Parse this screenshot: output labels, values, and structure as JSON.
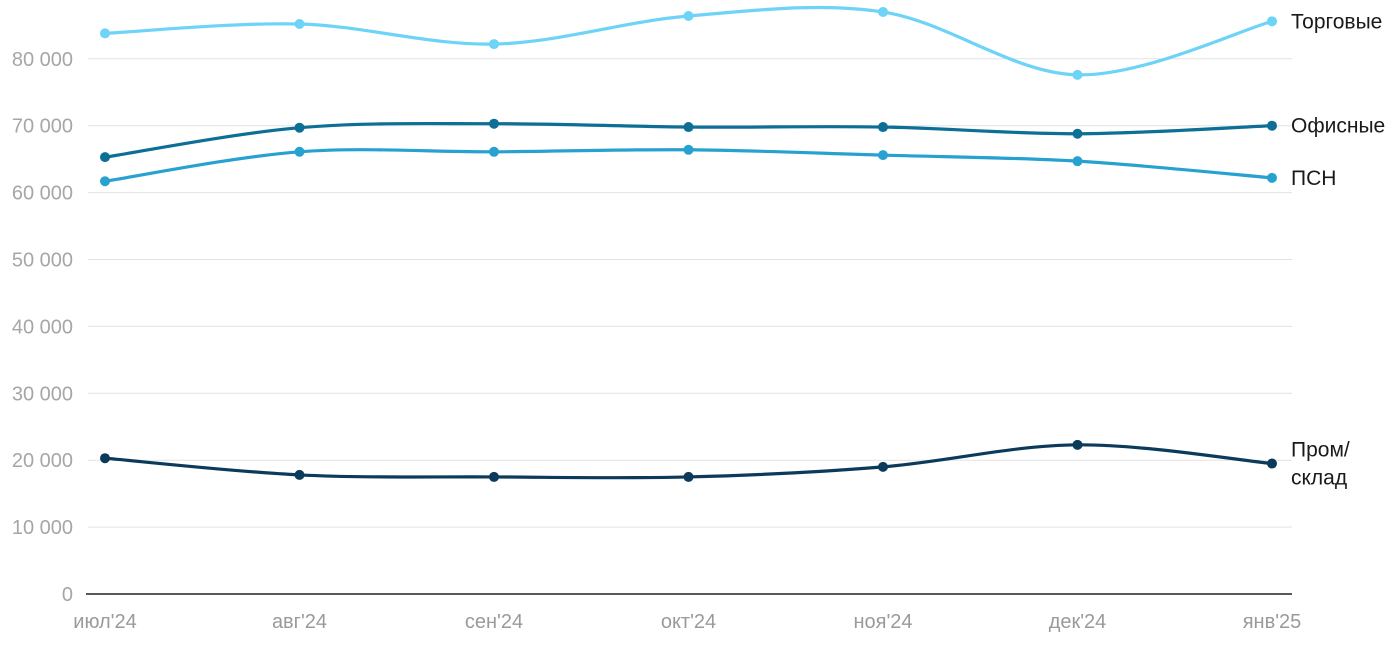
{
  "chart_data": {
    "type": "line",
    "title": "",
    "xlabel": "",
    "ylabel": "",
    "categories": [
      "июл'24",
      "авг'24",
      "сен'24",
      "окт'24",
      "ноя'24",
      "дек'24",
      "янв'25"
    ],
    "ylim": [
      0,
      90000
    ],
    "yticks": [
      0,
      10000,
      20000,
      30000,
      40000,
      50000,
      60000,
      70000,
      80000
    ],
    "ytick_labels": [
      "0",
      "10 000",
      "20 000",
      "30 000",
      "40 000",
      "50 000",
      "60 000",
      "70 000",
      "80 000"
    ],
    "grid": true,
    "legend": "inline labels at right end of each line",
    "series": [
      {
        "name": "Торговые",
        "label_lines": [
          "Торговые"
        ],
        "color": "#6dd3f7",
        "values": [
          83800,
          85200,
          82200,
          86400,
          87000,
          77600,
          85600
        ]
      },
      {
        "name": "Офисные",
        "label_lines": [
          "Офисные"
        ],
        "color": "#0d6e96",
        "values": [
          65300,
          69700,
          70300,
          69800,
          69800,
          68800,
          70000
        ]
      },
      {
        "name": "ПСН",
        "label_lines": [
          "ПСН"
        ],
        "color": "#27a2d0",
        "values": [
          61700,
          66100,
          66100,
          66400,
          65600,
          64700,
          62200
        ]
      },
      {
        "name": "Пром/склад",
        "label_lines": [
          "Пром/",
          "склад"
        ],
        "color": "#0c3a5b",
        "values": [
          20300,
          17800,
          17500,
          17500,
          19000,
          22300,
          19500
        ]
      }
    ]
  }
}
